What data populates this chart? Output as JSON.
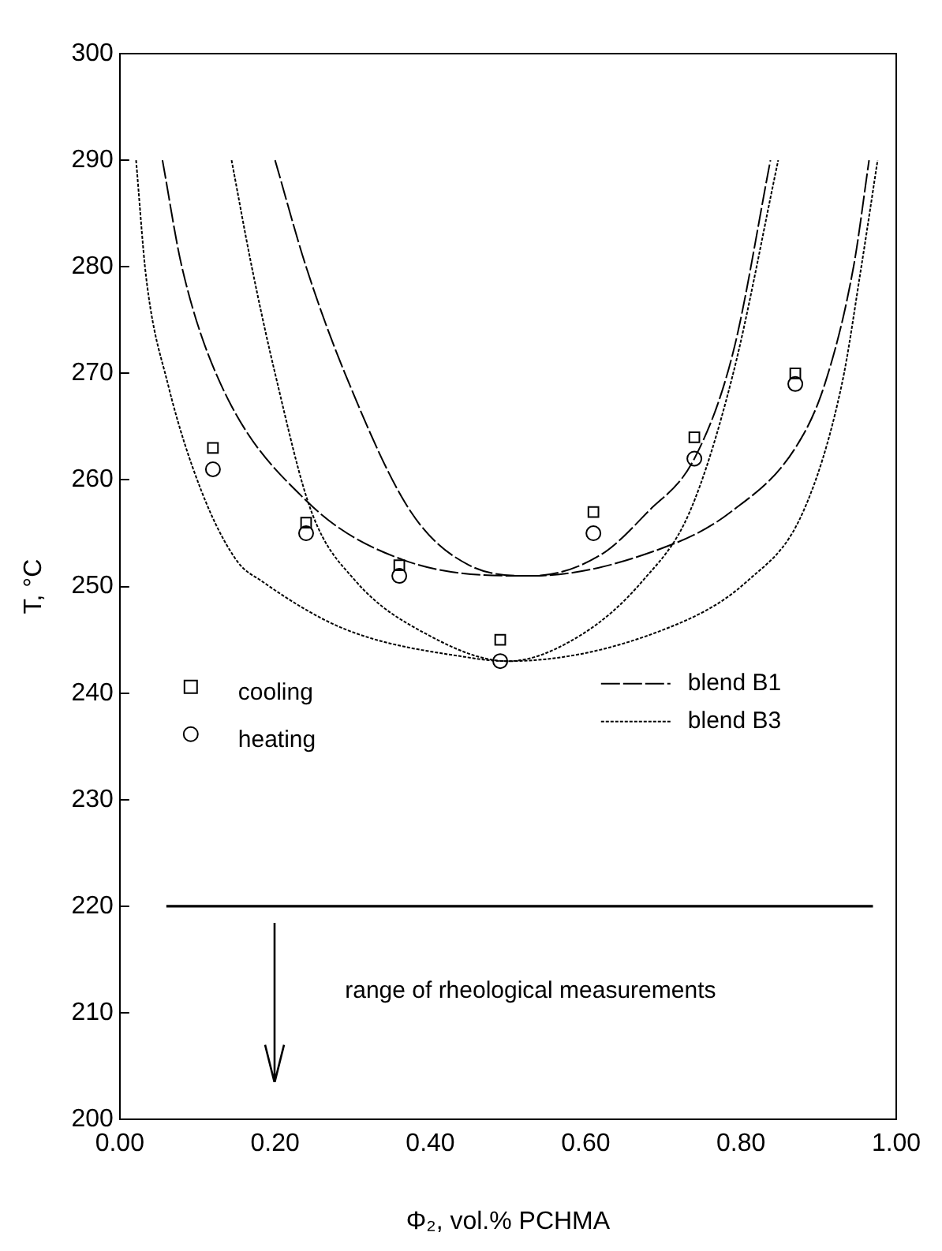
{
  "chart_data": {
    "type": "scatter",
    "xlabel": "Φ₂, vol.% PCHMA",
    "ylabel": "T, °C",
    "xlim": [
      0,
      1
    ],
    "ylim": [
      200,
      300
    ],
    "xticks": [
      {
        "value": 0,
        "label": "0.00"
      },
      {
        "value": 0.2,
        "label": "0.20"
      },
      {
        "value": 0.4,
        "label": "0.40"
      },
      {
        "value": 0.6,
        "label": "0.60"
      },
      {
        "value": 0.8,
        "label": "0.80"
      },
      {
        "value": 1,
        "label": "1.00"
      }
    ],
    "yticks": [
      200,
      210,
      220,
      230,
      240,
      250,
      260,
      270,
      280,
      290,
      300
    ],
    "grid": false,
    "legend": "bottom",
    "annotations": [
      "range of rheological measurements"
    ],
    "series": [
      {
        "name": "cooling",
        "marker": "square",
        "color": "#000000",
        "x": [
          0.12,
          0.24,
          0.36,
          0.49,
          0.61,
          0.74,
          0.87
        ],
        "values": [
          263,
          256,
          252,
          245,
          257,
          264,
          270
        ]
      },
      {
        "name": "heating",
        "marker": "circle",
        "color": "#000000",
        "x": [
          0.12,
          0.24,
          0.36,
          0.49,
          0.61,
          0.74,
          0.87
        ],
        "values": [
          261,
          255,
          251,
          243,
          255,
          262,
          269
        ]
      },
      {
        "name": "blend B1",
        "type": "line",
        "line_style": "dashed",
        "color": "#000000",
        "x": [
          0.055,
          0.08,
          0.13,
          0.241,
          0.365,
          0.53,
          0.713,
          0.787,
          0.87,
          0.908,
          0.945,
          0.965
        ],
        "values": [
          290,
          280,
          269,
          258,
          252.5,
          251,
          254,
          257,
          263,
          269,
          280,
          290
        ]
      },
      {
        "type": "line",
        "line_style": "dashed",
        "color": "#000000",
        "x": [
          0.2,
          0.24,
          0.29,
          0.375,
          0.45,
          0.53,
          0.62,
          0.68,
          0.74,
          0.79,
          0.838
        ],
        "values": [
          290,
          280,
          270,
          257,
          252,
          251,
          253,
          257,
          262,
          272,
          290
        ]
      },
      {
        "name": "blend B3",
        "type": "line",
        "line_style": "dotted",
        "color": "#000000",
        "x": [
          0.021,
          0.034,
          0.062,
          0.105,
          0.151,
          0.183,
          0.29,
          0.453,
          0.5,
          0.702,
          0.808,
          0.88,
          0.93,
          0.955,
          0.976
        ],
        "values": [
          290,
          279,
          269,
          259,
          252.4,
          250.5,
          246,
          243.3,
          243,
          246,
          250.5,
          257,
          269,
          280,
          290
        ]
      },
      {
        "type": "line",
        "line_style": "dotted",
        "color": "#000000",
        "x": [
          0.144,
          0.17,
          0.2,
          0.247,
          0.304,
          0.396,
          0.5,
          0.595,
          0.673,
          0.734,
          0.79,
          0.848
        ],
        "values": [
          290,
          280,
          270,
          257,
          250.5,
          245.5,
          243,
          245.5,
          250.5,
          257,
          270,
          290
        ]
      },
      {
        "type": "line",
        "line_style": "solid",
        "color": "#000000",
        "x": [
          0.06,
          0.97
        ],
        "values": [
          220,
          220
        ]
      }
    ]
  }
}
